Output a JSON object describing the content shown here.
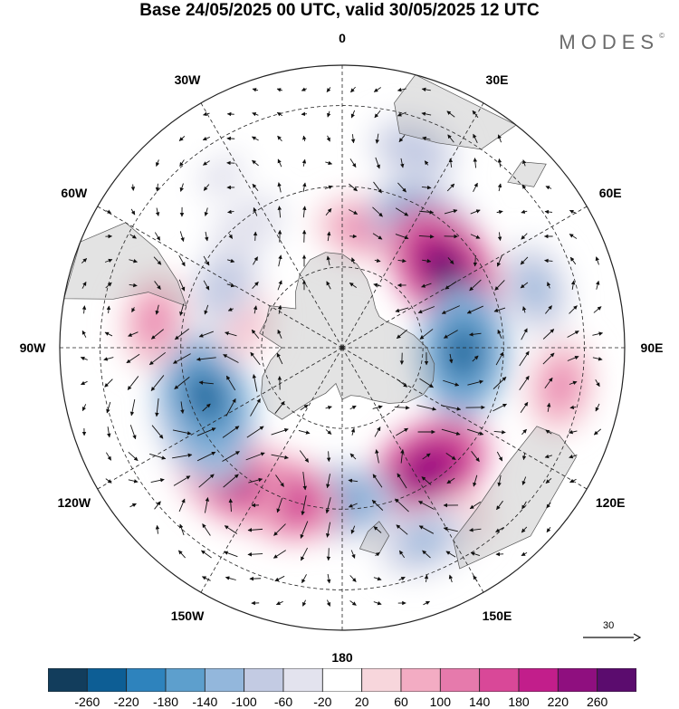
{
  "title": "Base 24/05/2025 00 UTC, valid 30/05/2025 12 UTC",
  "brand": "MODES",
  "brand_mark": "©",
  "longitude_labels": [
    "0",
    "30E",
    "60E",
    "90E",
    "120E",
    "150E",
    "180",
    "150W",
    "120W",
    "90W",
    "60W",
    "30W"
  ],
  "reference_vector": {
    "label": "30",
    "value": 30
  },
  "colorbar": {
    "labels": [
      "-260",
      "-220",
      "-180",
      "-140",
      "-100",
      "-60",
      "-20",
      "20",
      "60",
      "100",
      "140",
      "180",
      "220",
      "260"
    ],
    "colors": [
      "#123d5c",
      "#0d5e95",
      "#2e83bd",
      "#5d9fcd",
      "#93b7dc",
      "#c3cbe3",
      "#e3e3ee",
      "#ffffff",
      "#f7d6dc",
      "#f3acc3",
      "#e67aac",
      "#d94898",
      "#c21e8b",
      "#8f0f7f",
      "#5b0c6e"
    ]
  },
  "anomaly_centers": [
    {
      "lon": 20,
      "colat": 52,
      "value": -100
    },
    {
      "lon": 10,
      "colat": 30,
      "value": 120
    },
    {
      "lon": 35,
      "colat": 36,
      "value": -200
    },
    {
      "lon": 52,
      "colat": 32,
      "value": 260
    },
    {
      "lon": 73,
      "colat": 50,
      "value": -120
    },
    {
      "lon": 92,
      "colat": 30,
      "value": -240
    },
    {
      "lon": 100,
      "colat": 55,
      "value": 120
    },
    {
      "lon": 145,
      "colat": 37,
      "value": 240
    },
    {
      "lon": 148,
      "colat": 52,
      "value": 60
    },
    {
      "lon": 157,
      "colat": 52,
      "value": -120
    },
    {
      "lon": 180,
      "colat": 38,
      "value": -160
    },
    {
      "lon": -158,
      "colat": 40,
      "value": 200
    },
    {
      "lon": -138,
      "colat": 42,
      "value": 220
    },
    {
      "lon": -120,
      "colat": 40,
      "value": -200
    },
    {
      "lon": -110,
      "colat": 36,
      "value": -240
    },
    {
      "lon": -82,
      "colat": 47,
      "value": 120
    },
    {
      "lon": -76,
      "colat": 25,
      "value": 60
    },
    {
      "lon": -62,
      "colat": 33,
      "value": -100
    },
    {
      "lon": -38,
      "colat": 38,
      "value": -60
    },
    {
      "lon": -35,
      "colat": 52,
      "value": -40
    }
  ]
}
